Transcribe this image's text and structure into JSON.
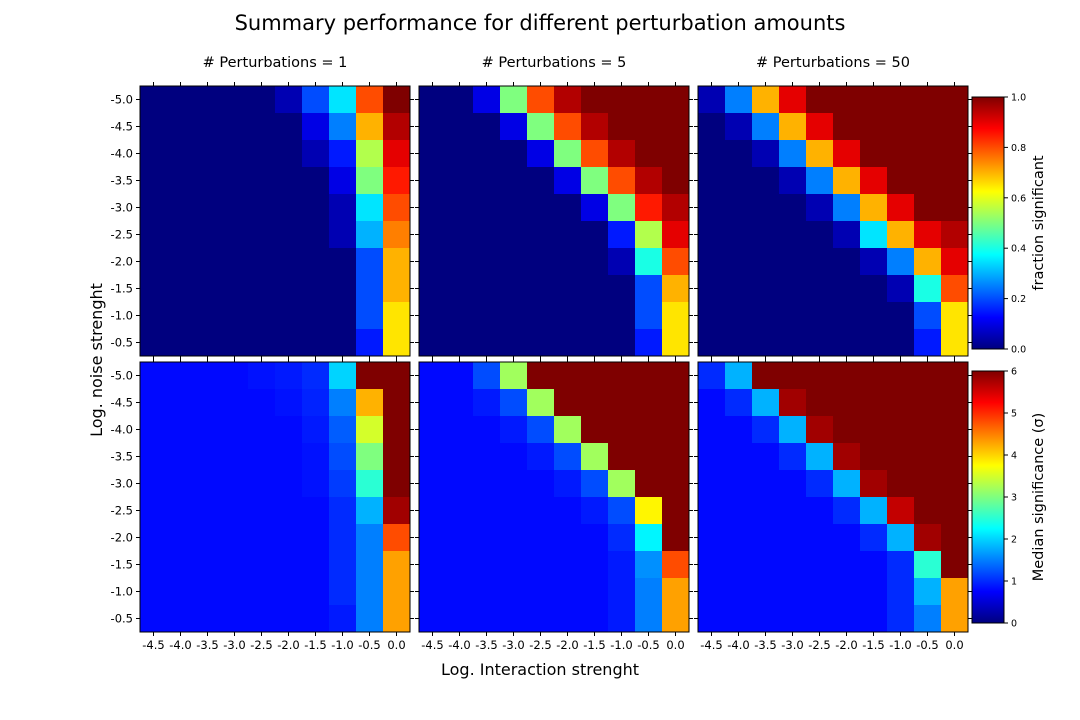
{
  "title": "Summary performance for different perturbation amounts",
  "xlabel": "Log. Interaction strenght",
  "ylabel": "Log. noise strenght",
  "colors": {
    "colormap": "jet",
    "jet_stops": [
      "#00007f",
      "#0000ff",
      "#007fff",
      "#00ffff",
      "#7fff7f",
      "#ffff00",
      "#ff7f00",
      "#ff0000",
      "#7f0000"
    ]
  },
  "chart_data": {
    "type": "heatmap",
    "x_ticks": [
      "-4.5",
      "-4.0",
      "-3.5",
      "-3.0",
      "-2.5",
      "-2.0",
      "-1.5",
      "-1.0",
      "-0.5",
      "0.0"
    ],
    "y_ticks": [
      "-5.0",
      "-4.5",
      "-4.0",
      "-3.5",
      "-3.0",
      "-2.5",
      "-2.0",
      "-1.5",
      "-1.0",
      "-0.5"
    ],
    "columns": [
      {
        "title": "# Perturbations = 1"
      },
      {
        "title": "# Perturbations = 5"
      },
      {
        "title": "# Perturbations = 50"
      }
    ],
    "rows": [
      {
        "metric": "fraction significant",
        "colorbar_label": "fraction significant",
        "vmin": 0,
        "vmax": 1,
        "colorbar_ticks": [
          "0.0",
          "0.2",
          "0.4",
          "0.6",
          "0.8",
          "1.0"
        ],
        "panels": [
          [
            [
              0.0,
              0.0,
              0.0,
              0.0,
              0.0,
              0.05,
              0.2,
              0.35,
              0.8,
              1.0
            ],
            [
              0.0,
              0.0,
              0.0,
              0.0,
              0.0,
              0.0,
              0.1,
              0.25,
              0.7,
              0.95
            ],
            [
              0.0,
              0.0,
              0.0,
              0.0,
              0.0,
              0.0,
              0.05,
              0.15,
              0.55,
              0.9
            ],
            [
              0.0,
              0.0,
              0.0,
              0.0,
              0.0,
              0.0,
              0.0,
              0.1,
              0.5,
              0.85
            ],
            [
              0.0,
              0.0,
              0.0,
              0.0,
              0.0,
              0.0,
              0.0,
              0.05,
              0.35,
              0.8
            ],
            [
              0.0,
              0.0,
              0.0,
              0.0,
              0.0,
              0.0,
              0.0,
              0.05,
              0.3,
              0.75
            ],
            [
              0.0,
              0.0,
              0.0,
              0.0,
              0.0,
              0.0,
              0.0,
              0.0,
              0.2,
              0.7
            ],
            [
              0.0,
              0.0,
              0.0,
              0.0,
              0.0,
              0.0,
              0.0,
              0.0,
              0.2,
              0.7
            ],
            [
              0.0,
              0.0,
              0.0,
              0.0,
              0.0,
              0.0,
              0.0,
              0.0,
              0.2,
              0.65
            ],
            [
              0.0,
              0.0,
              0.0,
              0.0,
              0.0,
              0.0,
              0.0,
              0.0,
              0.15,
              0.65
            ]
          ],
          [
            [
              0.0,
              0.0,
              0.1,
              0.5,
              0.8,
              0.95,
              1.0,
              1.0,
              1.0,
              1.0
            ],
            [
              0.0,
              0.0,
              0.0,
              0.1,
              0.5,
              0.8,
              0.95,
              1.0,
              1.0,
              1.0
            ],
            [
              0.0,
              0.0,
              0.0,
              0.0,
              0.1,
              0.5,
              0.8,
              0.95,
              1.0,
              1.0
            ],
            [
              0.0,
              0.0,
              0.0,
              0.0,
              0.0,
              0.1,
              0.5,
              0.8,
              0.95,
              1.0
            ],
            [
              0.0,
              0.0,
              0.0,
              0.0,
              0.0,
              0.0,
              0.1,
              0.5,
              0.85,
              0.95
            ],
            [
              0.0,
              0.0,
              0.0,
              0.0,
              0.0,
              0.0,
              0.0,
              0.15,
              0.55,
              0.9
            ],
            [
              0.0,
              0.0,
              0.0,
              0.0,
              0.0,
              0.0,
              0.0,
              0.05,
              0.4,
              0.8
            ],
            [
              0.0,
              0.0,
              0.0,
              0.0,
              0.0,
              0.0,
              0.0,
              0.0,
              0.2,
              0.7
            ],
            [
              0.0,
              0.0,
              0.0,
              0.0,
              0.0,
              0.0,
              0.0,
              0.0,
              0.2,
              0.65
            ],
            [
              0.0,
              0.0,
              0.0,
              0.0,
              0.0,
              0.0,
              0.0,
              0.0,
              0.15,
              0.65
            ]
          ],
          [
            [
              0.05,
              0.25,
              0.7,
              0.9,
              1.0,
              1.0,
              1.0,
              1.0,
              1.0,
              1.0
            ],
            [
              0.0,
              0.05,
              0.25,
              0.7,
              0.9,
              1.0,
              1.0,
              1.0,
              1.0,
              1.0
            ],
            [
              0.0,
              0.0,
              0.05,
              0.25,
              0.7,
              0.9,
              1.0,
              1.0,
              1.0,
              1.0
            ],
            [
              0.0,
              0.0,
              0.0,
              0.05,
              0.25,
              0.7,
              0.9,
              1.0,
              1.0,
              1.0
            ],
            [
              0.0,
              0.0,
              0.0,
              0.0,
              0.05,
              0.25,
              0.7,
              0.9,
              1.0,
              1.0
            ],
            [
              0.0,
              0.0,
              0.0,
              0.0,
              0.0,
              0.05,
              0.35,
              0.7,
              0.9,
              0.95
            ],
            [
              0.0,
              0.0,
              0.0,
              0.0,
              0.0,
              0.0,
              0.05,
              0.25,
              0.7,
              0.9
            ],
            [
              0.0,
              0.0,
              0.0,
              0.0,
              0.0,
              0.0,
              0.0,
              0.05,
              0.4,
              0.8
            ],
            [
              0.0,
              0.0,
              0.0,
              0.0,
              0.0,
              0.0,
              0.0,
              0.0,
              0.2,
              0.65
            ],
            [
              0.0,
              0.0,
              0.0,
              0.0,
              0.0,
              0.0,
              0.0,
              0.0,
              0.15,
              0.65
            ]
          ]
        ]
      },
      {
        "metric": "median significance",
        "colorbar_label": "Median significance (σ)",
        "vmin": 0,
        "vmax": 6,
        "colorbar_ticks": [
          "0",
          "1",
          "2",
          "3",
          "4",
          "5",
          "6"
        ],
        "panels": [
          [
            [
              0.8,
              0.8,
              0.8,
              0.8,
              0.85,
              0.9,
              1.0,
              2.0,
              6.0,
              6.0
            ],
            [
              0.8,
              0.8,
              0.8,
              0.8,
              0.8,
              0.85,
              0.95,
              1.5,
              4.2,
              6.0
            ],
            [
              0.8,
              0.8,
              0.8,
              0.8,
              0.8,
              0.8,
              0.9,
              1.3,
              3.5,
              6.0
            ],
            [
              0.8,
              0.8,
              0.8,
              0.8,
              0.8,
              0.8,
              0.85,
              1.2,
              3.0,
              6.0
            ],
            [
              0.8,
              0.8,
              0.8,
              0.8,
              0.8,
              0.8,
              0.85,
              1.1,
              2.5,
              6.0
            ],
            [
              0.8,
              0.8,
              0.8,
              0.8,
              0.8,
              0.8,
              0.8,
              1.0,
              1.8,
              5.8
            ],
            [
              0.8,
              0.8,
              0.8,
              0.8,
              0.8,
              0.8,
              0.8,
              1.0,
              1.5,
              4.8
            ],
            [
              0.8,
              0.8,
              0.8,
              0.8,
              0.8,
              0.8,
              0.8,
              1.0,
              1.5,
              4.3
            ],
            [
              0.8,
              0.8,
              0.8,
              0.8,
              0.8,
              0.8,
              0.8,
              1.0,
              1.5,
              4.3
            ],
            [
              0.8,
              0.8,
              0.8,
              0.8,
              0.8,
              0.8,
              0.8,
              0.9,
              1.5,
              4.3
            ]
          ],
          [
            [
              0.8,
              0.8,
              1.2,
              3.2,
              6.0,
              6.0,
              6.0,
              6.0,
              6.0,
              6.0
            ],
            [
              0.8,
              0.8,
              0.9,
              1.2,
              3.2,
              6.0,
              6.0,
              6.0,
              6.0,
              6.0
            ],
            [
              0.8,
              0.8,
              0.8,
              0.9,
              1.2,
              3.2,
              6.0,
              6.0,
              6.0,
              6.0
            ],
            [
              0.8,
              0.8,
              0.8,
              0.8,
              0.9,
              1.2,
              3.2,
              6.0,
              6.0,
              6.0
            ],
            [
              0.8,
              0.8,
              0.8,
              0.8,
              0.8,
              0.9,
              1.2,
              3.2,
              6.0,
              6.0
            ],
            [
              0.8,
              0.8,
              0.8,
              0.8,
              0.8,
              0.8,
              0.9,
              1.2,
              3.8,
              6.0
            ],
            [
              0.8,
              0.8,
              0.8,
              0.8,
              0.8,
              0.8,
              0.8,
              1.0,
              2.2,
              6.0
            ],
            [
              0.8,
              0.8,
              0.8,
              0.8,
              0.8,
              0.8,
              0.8,
              0.9,
              1.6,
              4.8
            ],
            [
              0.8,
              0.8,
              0.8,
              0.8,
              0.8,
              0.8,
              0.8,
              0.9,
              1.5,
              4.3
            ],
            [
              0.8,
              0.8,
              0.8,
              0.8,
              0.8,
              0.8,
              0.8,
              0.9,
              1.5,
              4.3
            ]
          ],
          [
            [
              1.0,
              1.8,
              6.0,
              6.0,
              6.0,
              6.0,
              6.0,
              6.0,
              6.0,
              6.0
            ],
            [
              0.8,
              1.0,
              1.8,
              5.8,
              6.0,
              6.0,
              6.0,
              6.0,
              6.0,
              6.0
            ],
            [
              0.8,
              0.8,
              1.0,
              1.8,
              5.8,
              6.0,
              6.0,
              6.0,
              6.0,
              6.0
            ],
            [
              0.8,
              0.8,
              0.8,
              1.0,
              1.8,
              5.8,
              6.0,
              6.0,
              6.0,
              6.0
            ],
            [
              0.8,
              0.8,
              0.8,
              0.8,
              1.0,
              1.8,
              5.8,
              6.0,
              6.0,
              6.0
            ],
            [
              0.8,
              0.8,
              0.8,
              0.8,
              0.8,
              1.0,
              1.8,
              5.6,
              6.0,
              6.0
            ],
            [
              0.8,
              0.8,
              0.8,
              0.8,
              0.8,
              0.8,
              1.0,
              1.8,
              5.8,
              6.0
            ],
            [
              0.8,
              0.8,
              0.8,
              0.8,
              0.8,
              0.8,
              0.8,
              1.0,
              2.5,
              6.0
            ],
            [
              0.8,
              0.8,
              0.8,
              0.8,
              0.8,
              0.8,
              0.8,
              1.0,
              1.8,
              4.3
            ],
            [
              0.8,
              0.8,
              0.8,
              0.8,
              0.8,
              0.8,
              0.8,
              1.0,
              1.5,
              4.3
            ]
          ]
        ]
      }
    ]
  }
}
